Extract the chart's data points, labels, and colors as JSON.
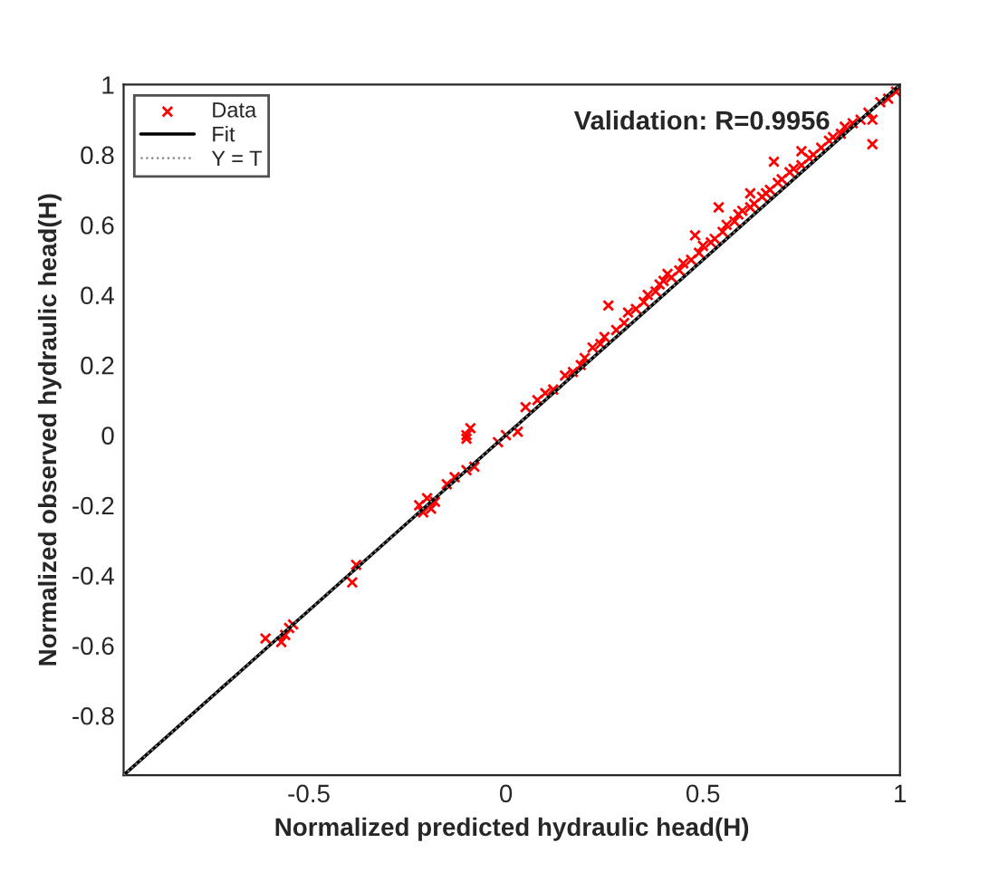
{
  "chart_data": {
    "type": "scatter",
    "xlabel": "Normalized predicted hydraulic head(H)",
    "ylabel": "Normalized observed hydraulic head(H)",
    "annotations": [
      "Validation: R=0.9956"
    ],
    "xlim": [
      -0.97,
      1
    ],
    "ylim": [
      -0.97,
      1
    ],
    "xticks": [
      -0.5,
      0,
      0.5,
      1
    ],
    "yticks": [
      -0.8,
      -0.6,
      -0.4,
      -0.2,
      0,
      0.2,
      0.4,
      0.6,
      0.8,
      1
    ],
    "grid": false,
    "legend": "top left",
    "series": [
      {
        "name": "Data",
        "marker": "cross",
        "color": "#ff0000",
        "x": [
          -0.61,
          -0.57,
          -0.56,
          -0.55,
          -0.54,
          -0.38,
          -0.39,
          -0.22,
          -0.21,
          -0.2,
          -0.19,
          -0.18,
          -0.15,
          -0.13,
          -0.1,
          -0.08,
          -0.1,
          -0.09,
          -0.1,
          -0.02,
          0.0,
          0.03,
          0.05,
          0.08,
          0.1,
          0.12,
          0.15,
          0.17,
          0.19,
          0.2,
          0.22,
          0.24,
          0.26,
          0.25,
          0.28,
          0.3,
          0.31,
          0.33,
          0.35,
          0.36,
          0.38,
          0.39,
          0.41,
          0.4,
          0.42,
          0.44,
          0.45,
          0.47,
          0.48,
          0.49,
          0.5,
          0.52,
          0.53,
          0.54,
          0.55,
          0.56,
          0.58,
          0.59,
          0.6,
          0.62,
          0.62,
          0.63,
          0.65,
          0.66,
          0.67,
          0.68,
          0.69,
          0.7,
          0.72,
          0.73,
          0.75,
          0.75,
          0.77,
          0.78,
          0.8,
          0.82,
          0.83,
          0.85,
          0.86,
          0.88,
          0.9,
          0.92,
          0.93,
          0.93,
          0.95,
          0.97,
          0.99
        ],
        "values": [
          -0.58,
          -0.59,
          -0.57,
          -0.55,
          -0.54,
          -0.37,
          -0.42,
          -0.2,
          -0.22,
          -0.18,
          -0.21,
          -0.19,
          -0.14,
          -0.12,
          -0.1,
          -0.09,
          0.0,
          0.02,
          -0.01,
          -0.02,
          0.0,
          0.01,
          0.08,
          0.1,
          0.12,
          0.13,
          0.17,
          0.18,
          0.2,
          0.22,
          0.25,
          0.26,
          0.37,
          0.28,
          0.3,
          0.32,
          0.35,
          0.36,
          0.38,
          0.4,
          0.41,
          0.43,
          0.46,
          0.44,
          0.45,
          0.47,
          0.49,
          0.5,
          0.57,
          0.52,
          0.54,
          0.55,
          0.56,
          0.65,
          0.58,
          0.6,
          0.61,
          0.63,
          0.64,
          0.69,
          0.65,
          0.66,
          0.68,
          0.69,
          0.7,
          0.78,
          0.72,
          0.73,
          0.75,
          0.76,
          0.81,
          0.77,
          0.79,
          0.8,
          0.82,
          0.84,
          0.85,
          0.86,
          0.88,
          0.89,
          0.9,
          0.92,
          0.9,
          0.83,
          0.95,
          0.96,
          0.98
        ]
      },
      {
        "name": "Fit",
        "type": "line",
        "line_style": "solid",
        "color": "#000000",
        "x": [
          -0.97,
          1
        ],
        "values": [
          -0.97,
          1
        ]
      },
      {
        "name": "Y = T",
        "type": "line",
        "line_style": "dotted",
        "color": "#808080",
        "x": [
          -0.97,
          1
        ],
        "values": [
          -0.97,
          1
        ]
      }
    ]
  }
}
